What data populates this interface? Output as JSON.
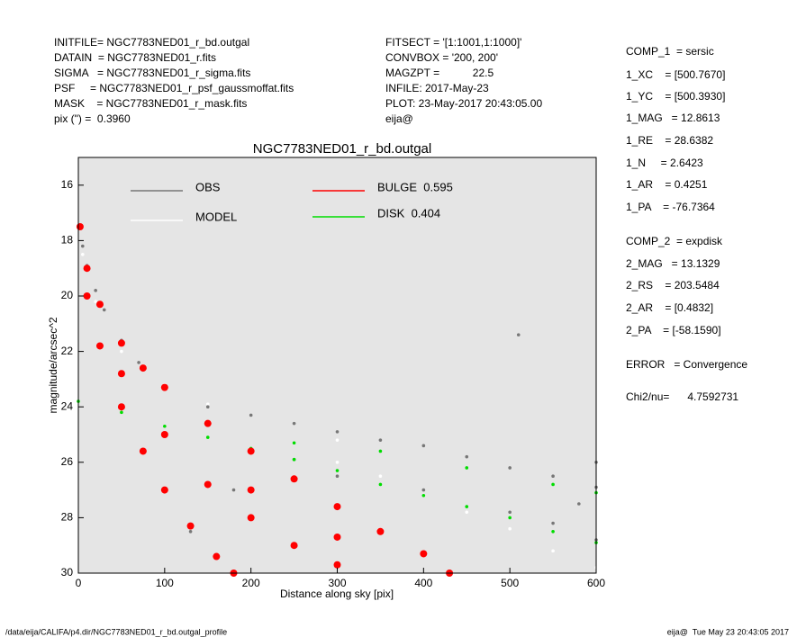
{
  "header": {
    "left": [
      "INITFILE= NGC7783NED01_r_bd.outgal",
      "DATAIN  = NGC7783NED01_r.fits",
      "SIGMA   = NGC7783NED01_r_sigma.fits",
      "PSF     = NGC7783NED01_r_psf_gaussmoffat.fits",
      "MASK    = NGC7783NED01_r_mask.fits",
      "pix (\") =  0.3960"
    ],
    "middle": [
      "FITSECT = '[1:1001,1:1000]'",
      "CONVBOX = '200, 200'",
      "MAGZPT =           22.5",
      "INFILE: 2017-May-23",
      "PLOT: 23-May-2017 20:43:05.00",
      "eija@"
    ]
  },
  "side_panel": [
    "COMP_1  = sersic",
    "1_XC    = [500.7670]",
    "1_YC    = [500.3930]",
    "1_MAG   = 12.8613",
    "1_RE    = 28.6382",
    "1_N     = 2.6423",
    "1_AR    = 0.4251",
    "1_PA    = -76.7364",
    "COMP_2  = expdisk",
    "2_MAG   = 13.1329",
    "2_RS    = 203.5484",
    "2_AR    = [0.4832]",
    "2_PA    = [-58.1590]",
    "ERROR   = Convergence",
    "Chi2/nu=      4.7592731"
  ],
  "footer": {
    "left": "/data/eija/CALIFA/p4.dir/NGC7783NED01_r_bd.outgal_profile",
    "right": "eija@  Tue May 23 20:43:05 2017"
  },
  "chart_data": {
    "type": "scatter",
    "title": "NGC7783NED01_r_bd.outgal",
    "x_label": "Distance along sky [pix]",
    "y_label": "magnitude/arcsec^2",
    "xlim": [
      0,
      600
    ],
    "xticks": [
      0,
      100,
      200,
      300,
      400,
      500,
      600
    ],
    "ylim": [
      30,
      15
    ],
    "yticks": [
      16,
      18,
      20,
      22,
      24,
      26,
      28,
      30
    ],
    "background": "#e5e5e5",
    "series": [
      {
        "name": "MODEL",
        "color": "#ffffff",
        "x": [
          5,
          20,
          50,
          100,
          150,
          200,
          250,
          300,
          350,
          400,
          450,
          500,
          550,
          600,
          150,
          300
        ],
        "values": [
          18.5,
          20.2,
          22.0,
          23.2,
          23.9,
          24.3,
          25.3,
          26.0,
          26.5,
          27.2,
          27.8,
          28.4,
          29.2,
          29.8,
          24.6,
          25.2
        ]
      },
      {
        "name": "OBS",
        "color": "#777777",
        "x": [
          5,
          10,
          20,
          30,
          50,
          70,
          100,
          150,
          200,
          250,
          300,
          350,
          400,
          450,
          500,
          550,
          600,
          300,
          400,
          500,
          550,
          600,
          250,
          180,
          130,
          510,
          600,
          580
        ],
        "values": [
          18.2,
          18.9,
          19.8,
          20.5,
          21.6,
          22.4,
          23.3,
          24.0,
          24.3,
          24.6,
          24.9,
          25.2,
          25.4,
          25.8,
          26.2,
          26.5,
          26.9,
          26.5,
          27.0,
          27.8,
          28.2,
          28.8,
          25.9,
          27.0,
          28.5,
          21.4,
          26.0,
          27.5
        ]
      },
      {
        "name": "DISK  0.404",
        "color": "#00dd00",
        "x": [
          0,
          50,
          100,
          150,
          200,
          250,
          300,
          350,
          400,
          450,
          500,
          550,
          600,
          250,
          350,
          450,
          550,
          600
        ],
        "values": [
          23.8,
          24.2,
          24.7,
          25.1,
          25.5,
          25.9,
          26.3,
          26.8,
          27.2,
          27.6,
          28.0,
          28.5,
          28.9,
          25.3,
          25.6,
          26.2,
          26.8,
          27.1
        ]
      },
      {
        "name": "BULGE  0.595",
        "color": "#ff0000",
        "x": [
          2,
          10,
          25,
          50,
          75,
          100,
          150,
          200,
          250,
          300,
          350,
          400,
          430,
          10,
          25,
          50,
          75,
          100,
          130,
          160,
          180,
          50,
          100,
          150,
          200,
          250,
          300,
          200,
          300
        ],
        "values": [
          17.5,
          19.0,
          20.3,
          21.7,
          22.6,
          23.3,
          24.6,
          25.6,
          26.6,
          27.6,
          28.5,
          29.3,
          30.0,
          20.0,
          21.8,
          24.0,
          25.6,
          27.0,
          28.3,
          29.4,
          30.0,
          22.8,
          25.0,
          26.8,
          28.0,
          29.0,
          29.7,
          27.0,
          28.7
        ]
      }
    ]
  }
}
